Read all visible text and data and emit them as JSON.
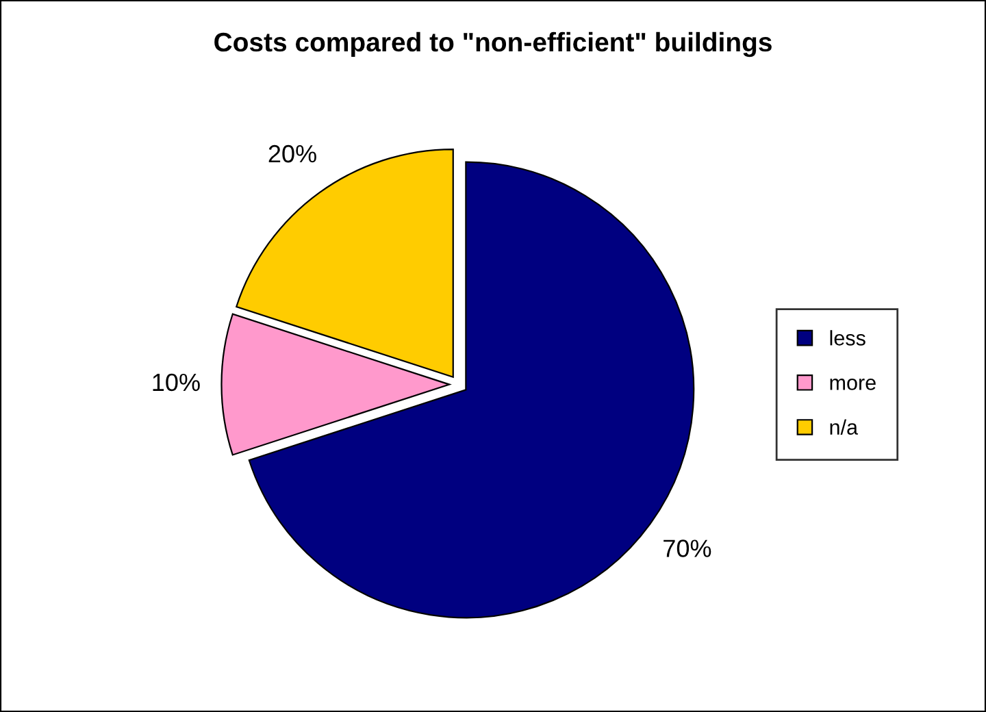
{
  "chart_data": {
    "type": "pie",
    "title": "Costs compared to \"non-efficient\" buildings",
    "categories": [
      "less",
      "more",
      "n/a"
    ],
    "values": [
      70,
      10,
      20
    ],
    "value_labels": [
      "70%",
      "10%",
      "20%"
    ],
    "colors": [
      "#000080",
      "#ff99cc",
      "#ffcc00"
    ],
    "legend": "right"
  }
}
